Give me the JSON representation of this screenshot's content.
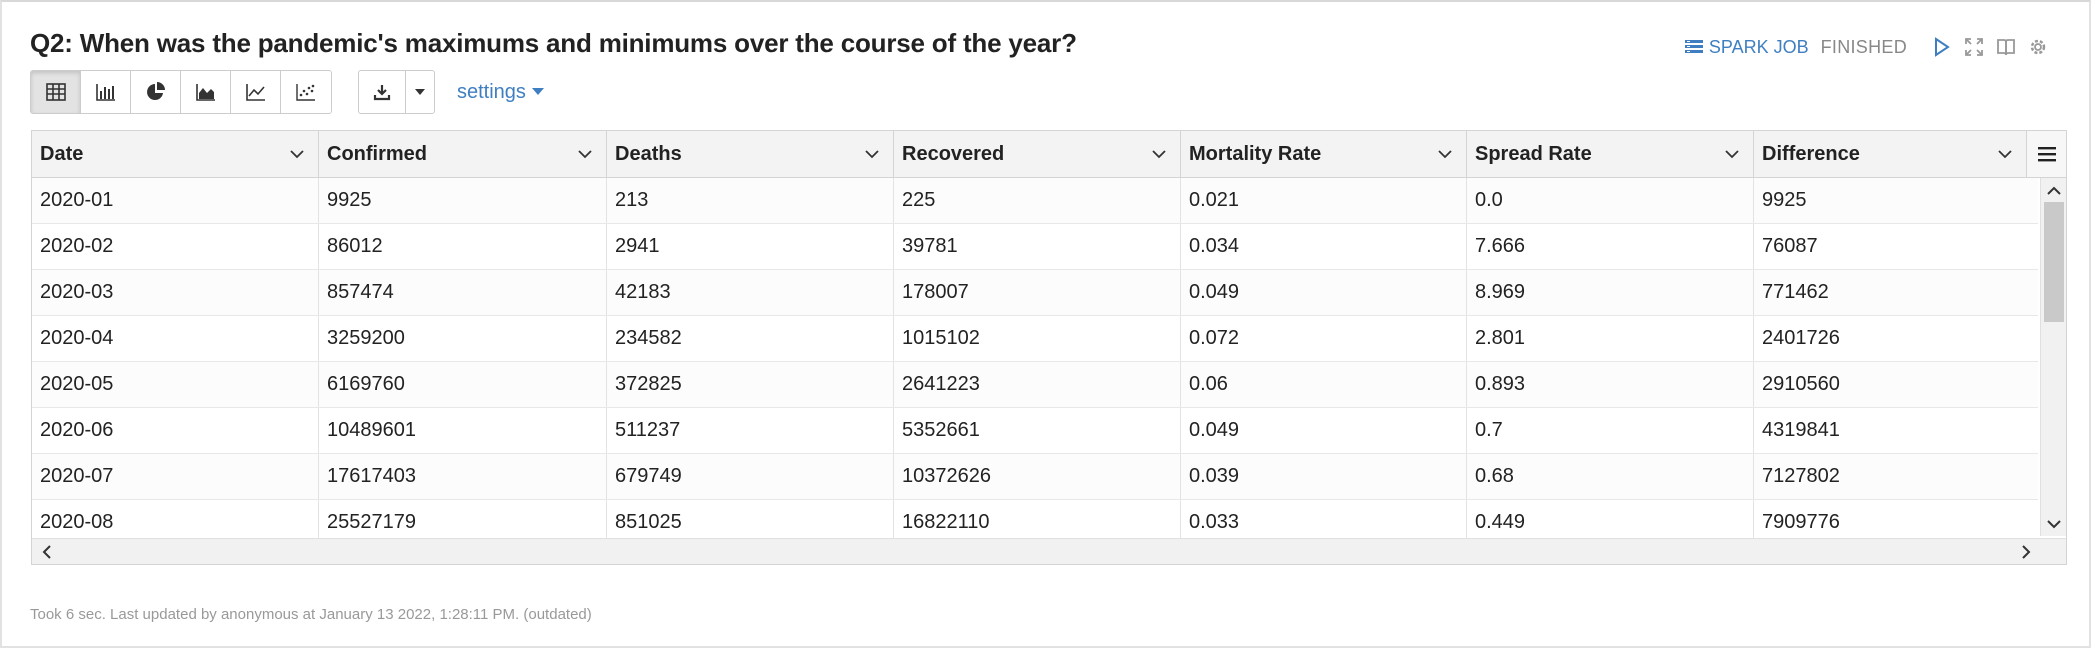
{
  "paragraph": {
    "title": "Q2: When was the pandemic's maximums and minimums over the course of the year?",
    "spark_job_label": "SPARK JOB",
    "status": "FINISHED",
    "settings_label": "settings",
    "footer": "Took 6 sec. Last updated by anonymous at January 13 2022, 1:28:11 PM. (outdated)"
  },
  "accent_color": "#3f7fc1",
  "toolbar_icons": [
    "table-icon",
    "bar-chart-icon",
    "pie-chart-icon",
    "area-chart-icon",
    "line-chart-icon",
    "scatter-chart-icon",
    "download-icon"
  ],
  "table": {
    "columns": [
      "Date",
      "Confirmed",
      "Deaths",
      "Recovered",
      "Mortality Rate",
      "Spread Rate",
      "Difference"
    ],
    "rows": [
      [
        "2020-01",
        "9925",
        "213",
        "225",
        "0.021",
        "0.0",
        "9925"
      ],
      [
        "2020-02",
        "86012",
        "2941",
        "39781",
        "0.034",
        "7.666",
        "76087"
      ],
      [
        "2020-03",
        "857474",
        "42183",
        "178007",
        "0.049",
        "8.969",
        "771462"
      ],
      [
        "2020-04",
        "3259200",
        "234582",
        "1015102",
        "0.072",
        "2.801",
        "2401726"
      ],
      [
        "2020-05",
        "6169760",
        "372825",
        "2641223",
        "0.06",
        "0.893",
        "2910560"
      ],
      [
        "2020-06",
        "10489601",
        "511237",
        "5352661",
        "0.049",
        "0.7",
        "4319841"
      ],
      [
        "2020-07",
        "17617403",
        "679749",
        "10372626",
        "0.039",
        "0.68",
        "7127802"
      ],
      [
        "2020-08",
        "25527179",
        "851025",
        "16822110",
        "0.033",
        "0.449",
        "7909776"
      ]
    ]
  }
}
